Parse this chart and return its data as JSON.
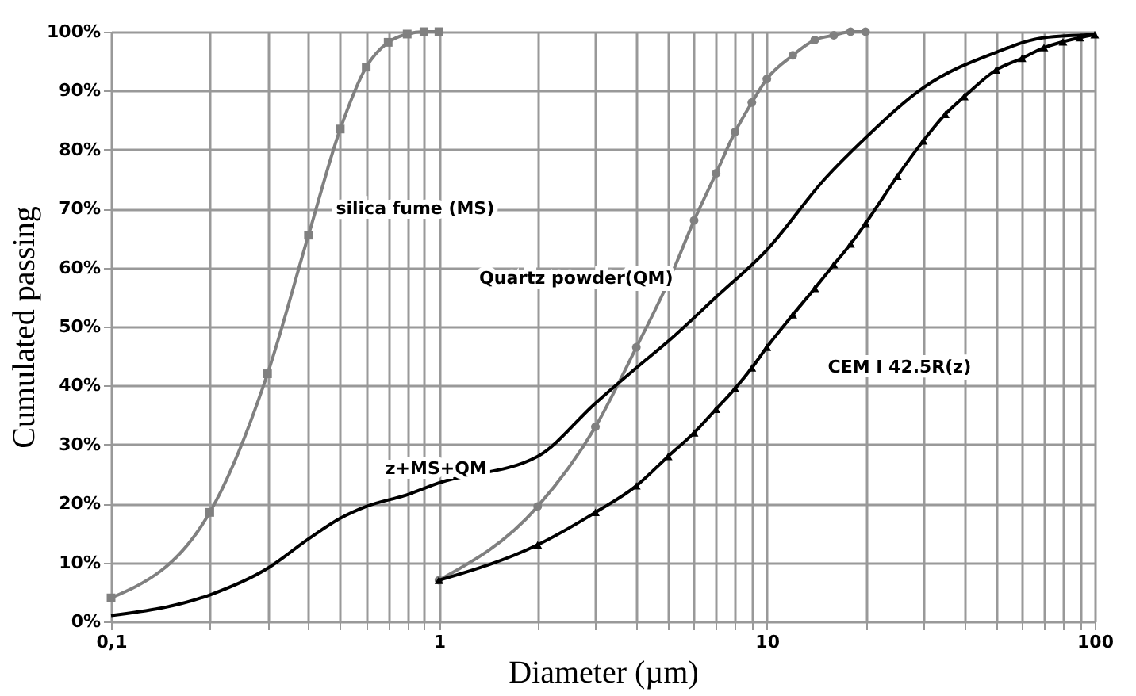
{
  "chart_data": {
    "type": "line",
    "xlabel": "Diameter (µm)",
    "ylabel": "Cumulated passing",
    "log": "x",
    "grid": true,
    "line_style": "solid",
    "xlim": [
      0.1,
      100
    ],
    "ylim": [
      0,
      100
    ],
    "xticks": [
      {
        "value": 0.1,
        "label": "0,1"
      },
      {
        "value": 0.2,
        "label": null
      },
      {
        "value": 0.3,
        "label": null
      },
      {
        "value": 0.4,
        "label": null
      },
      {
        "value": 0.5,
        "label": null
      },
      {
        "value": 0.6,
        "label": null
      },
      {
        "value": 0.7,
        "label": null
      },
      {
        "value": 0.8,
        "label": null
      },
      {
        "value": 0.9,
        "label": null
      },
      1,
      {
        "value": 2,
        "label": null
      },
      {
        "value": 3,
        "label": null
      },
      {
        "value": 4,
        "label": null
      },
      {
        "value": 5,
        "label": null
      },
      {
        "value": 6,
        "label": null
      },
      {
        "value": 7,
        "label": null
      },
      {
        "value": 8,
        "label": null
      },
      {
        "value": 9,
        "label": null
      },
      10,
      {
        "value": 20,
        "label": null
      },
      {
        "value": 30,
        "label": null
      },
      {
        "value": 40,
        "label": null
      },
      {
        "value": 50,
        "label": null
      },
      {
        "value": 60,
        "label": null
      },
      {
        "value": 70,
        "label": null
      },
      {
        "value": 80,
        "label": null
      },
      {
        "value": 90,
        "label": null
      },
      100
    ],
    "yticks": [
      {
        "value": 0,
        "label": "0%"
      },
      {
        "value": 10,
        "label": "10%"
      },
      {
        "value": 20,
        "label": "20%"
      },
      {
        "value": 30,
        "label": "30%"
      },
      {
        "value": 40,
        "label": "40%"
      },
      {
        "value": 50,
        "label": "50%"
      },
      {
        "value": 60,
        "label": "60%"
      },
      {
        "value": 70,
        "label": "70%"
      },
      {
        "value": 80,
        "label": "80%"
      },
      {
        "value": 90,
        "label": "90%"
      },
      {
        "value": 100,
        "label": "100%"
      }
    ],
    "series": [
      {
        "name": "silica fume (MS)",
        "color": "#808080",
        "marker": "square",
        "x": [
          0.1,
          0.2,
          0.3,
          0.4,
          0.5,
          0.6,
          0.7,
          0.8,
          0.9,
          1
        ],
        "values": [
          4,
          18.5,
          42,
          65.5,
          83.5,
          94,
          98.2,
          99.6,
          100,
          100
        ]
      },
      {
        "name": "Quartz powder(QM)",
        "color": "#808080",
        "marker": "circle",
        "x": [
          1,
          2,
          3,
          4,
          5,
          6,
          7,
          8,
          9,
          10,
          12,
          14,
          16,
          18,
          20
        ],
        "values": [
          7,
          19.5,
          33,
          46.5,
          57.5,
          68,
          76,
          83,
          88,
          92,
          96,
          98.6,
          99.4,
          100,
          100
        ]
      },
      {
        "name": "CEM I 42.5R(z)",
        "color": "#000000",
        "marker": "triangle",
        "x": [
          1,
          2,
          3,
          4,
          5,
          6,
          7,
          8,
          9,
          10,
          12,
          14,
          16,
          18,
          20,
          25,
          30,
          35,
          40,
          50,
          60,
          70,
          80,
          90,
          100
        ],
        "values": [
          7,
          13,
          18.5,
          23,
          28,
          32,
          36,
          39.5,
          43,
          46.5,
          52,
          56.5,
          60.5,
          64,
          67.5,
          75.5,
          81.5,
          86,
          89,
          93.5,
          95.5,
          97.3,
          98.3,
          99,
          99.5
        ]
      },
      {
        "name": "z+MS+QM",
        "color": "#000000",
        "marker": "none",
        "x": [
          0.1,
          0.2,
          0.3,
          0.4,
          0.5,
          0.6,
          0.8,
          1,
          2,
          3,
          4,
          5,
          7,
          10,
          15,
          20,
          30,
          50,
          70,
          100
        ],
        "values": [
          1,
          4.5,
          9,
          14,
          17.5,
          19.5,
          21.5,
          23.5,
          28,
          37,
          43,
          47.5,
          55,
          63,
          75,
          82,
          90.5,
          96.5,
          99,
          99.5
        ]
      }
    ]
  }
}
